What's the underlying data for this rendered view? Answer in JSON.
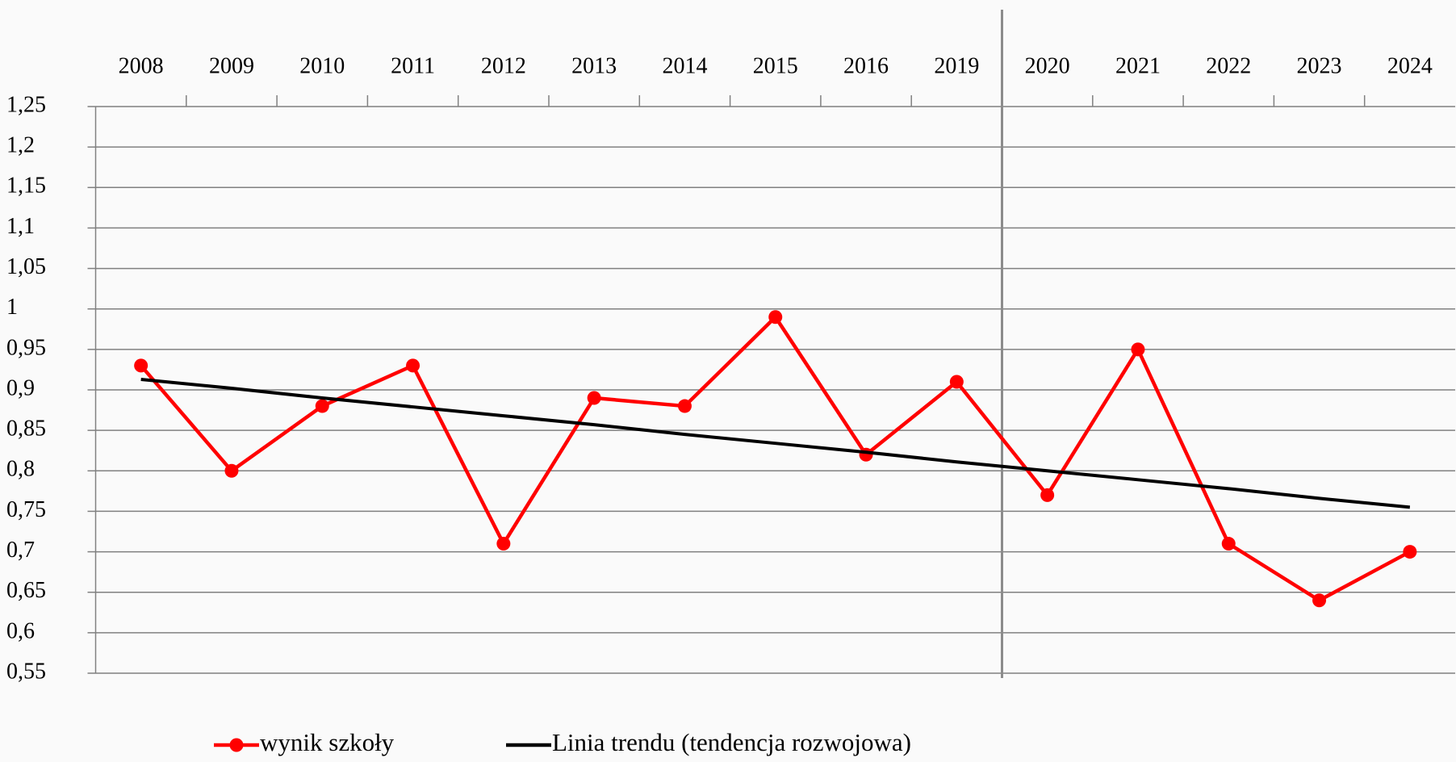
{
  "chart_data": {
    "type": "line",
    "categories": [
      "2008",
      "2009",
      "2010",
      "2011",
      "2012",
      "2013",
      "2014",
      "2015",
      "2016",
      "2019",
      "2020",
      "2021",
      "2022",
      "2023",
      "2024"
    ],
    "series": [
      {
        "name": "wynik szkoły",
        "color": "#ff0000",
        "marker": true,
        "values": [
          0.93,
          0.8,
          0.88,
          0.93,
          0.71,
          0.89,
          0.88,
          0.99,
          0.82,
          0.91,
          0.77,
          0.95,
          0.71,
          0.64,
          0.7
        ]
      },
      {
        "name": "Linia trendu (tendencja rozwojowa)",
        "color": "#000000",
        "marker": false,
        "values": [
          0.913,
          0.902,
          0.89,
          0.879,
          0.868,
          0.857,
          0.845,
          0.834,
          0.823,
          0.811,
          0.8,
          0.789,
          0.778,
          0.766,
          0.755
        ]
      }
    ],
    "ylim": [
      0.55,
      1.25
    ],
    "yticks": [
      {
        "value": 0.55,
        "label": "0,55"
      },
      {
        "value": 0.6,
        "label": "0,6"
      },
      {
        "value": 0.65,
        "label": "0,65"
      },
      {
        "value": 0.7,
        "label": "0,7"
      },
      {
        "value": 0.75,
        "label": "0,75"
      },
      {
        "value": 0.8,
        "label": "0,8"
      },
      {
        "value": 0.85,
        "label": "0,85"
      },
      {
        "value": 0.9,
        "label": "0,9"
      },
      {
        "value": 0.95,
        "label": "0,95"
      },
      1,
      {
        "value": 1.05,
        "label": "1,05"
      },
      {
        "value": 1.1,
        "label": "1,1"
      },
      {
        "value": 1.15,
        "label": "1,15"
      },
      {
        "value": 1.2,
        "label": "1,2"
      },
      {
        "value": 1.25,
        "label": "1,25"
      }
    ],
    "grid": true,
    "legend": "bottom"
  }
}
